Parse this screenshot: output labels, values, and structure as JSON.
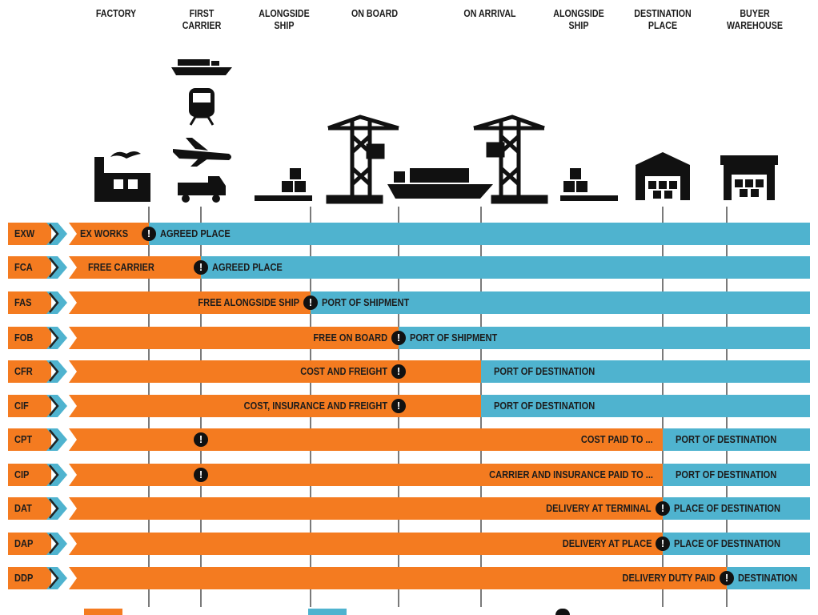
{
  "stages": [
    {
      "label": "FACTORY"
    },
    {
      "label": "FIRST\nCARRIER"
    },
    {
      "label": "ALONGSIDE\nSHIP"
    },
    {
      "label": "ON BOARD"
    },
    {
      "label": "ON ARRIVAL"
    },
    {
      "label": "ALONGSIDE\nSHIP"
    },
    {
      "label": "DESTINATION\nPLACE"
    },
    {
      "label": "BUYER\nWAREHOUSE"
    }
  ],
  "marker_glyph": "!",
  "colors": {
    "seller": "#f47b20",
    "buyer": "#4fb3cf",
    "marker": "#111111"
  },
  "icons": [
    "factory-icon",
    "container-ship-icon",
    "train-icon",
    "airplane-icon",
    "truck-icon",
    "boxes-icon",
    "crane-icon",
    "cargo-ship-icon",
    "crane-icon",
    "boxes-icon",
    "warehouse-icon",
    "warehouse-icon"
  ],
  "terms": [
    {
      "code": "EXW",
      "seller_text": "EX WORKS",
      "buyer_text": "AGREED PLACE",
      "cost_until": "factory",
      "risk_at": "factory"
    },
    {
      "code": "FCA",
      "seller_text": "FREE CARRIER",
      "buyer_text": "AGREED PLACE",
      "cost_until": "first_carrier",
      "risk_at": "first_carrier"
    },
    {
      "code": "FAS",
      "seller_text": "FREE ALONGSIDE SHIP",
      "buyer_text": "PORT OF SHIPMENT",
      "cost_until": "alongside_ship",
      "risk_at": "alongside_ship"
    },
    {
      "code": "FOB",
      "seller_text": "FREE ON BOARD",
      "buyer_text": "PORT OF SHIPMENT",
      "cost_until": "on_board",
      "risk_at": "on_board"
    },
    {
      "code": "CFR",
      "seller_text": "COST AND FREIGHT",
      "buyer_text": "PORT OF DESTINATION",
      "cost_until": "on_arrival",
      "risk_at": "on_board"
    },
    {
      "code": "CIF",
      "seller_text": "COST, INSURANCE AND FREIGHT",
      "buyer_text": "PORT OF DESTINATION",
      "cost_until": "on_arrival",
      "risk_at": "on_board"
    },
    {
      "code": "CPT",
      "seller_text": "COST PAID TO ...",
      "buyer_text": "PORT OF DESTINATION",
      "cost_until": "destination",
      "risk_at": "first_carrier"
    },
    {
      "code": "CIP",
      "seller_text": "CARRIER AND INSURANCE PAID TO ...",
      "buyer_text": "PORT OF DESTINATION",
      "cost_until": "destination",
      "risk_at": "first_carrier"
    },
    {
      "code": "DAT",
      "seller_text": "DELIVERY AT TERMINAL",
      "buyer_text": "PLACE OF DESTINATION",
      "cost_until": "destination",
      "risk_at": "destination"
    },
    {
      "code": "DAP",
      "seller_text": "DELIVERY AT PLACE",
      "buyer_text": "PLACE OF DESTINATION",
      "cost_until": "destination",
      "risk_at": "destination"
    },
    {
      "code": "DDP",
      "seller_text": "DELIVERY DUTY PAID",
      "buyer_text": "DESTINATION",
      "cost_until": "buyer_warehouse",
      "risk_at": "buyer_warehouse"
    }
  ]
}
